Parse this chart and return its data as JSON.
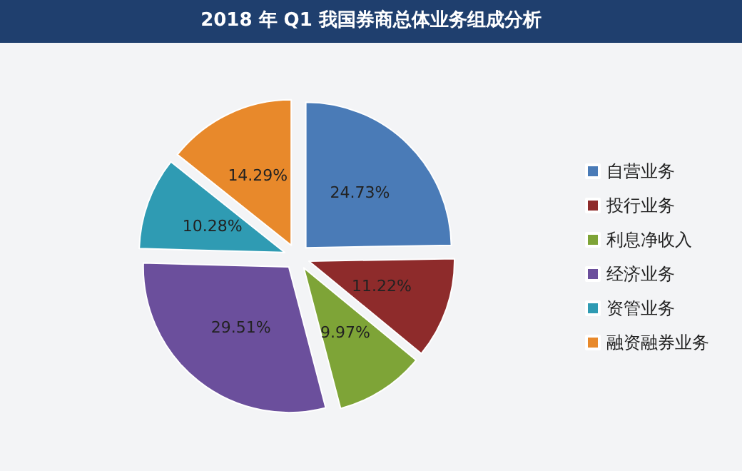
{
  "chart_data": {
    "type": "pie",
    "title": "2018 年 Q1 我国券商总体业务组成分析",
    "categories": [
      "自营业务",
      "投行业务",
      "利息净收入",
      "经济业务",
      "资管业务",
      "融资融券业务"
    ],
    "values": [
      24.73,
      11.22,
      9.97,
      29.51,
      10.28,
      14.29
    ],
    "colors": [
      "#4a7bb7",
      "#8e2b2b",
      "#7ea437",
      "#6b4f9c",
      "#2f9bb3",
      "#e8892b"
    ],
    "value_labels": [
      "24.73%",
      "11.22%",
      "9.97%",
      "29.51%",
      "10.28%",
      "14.29%"
    ],
    "legend": "right"
  }
}
